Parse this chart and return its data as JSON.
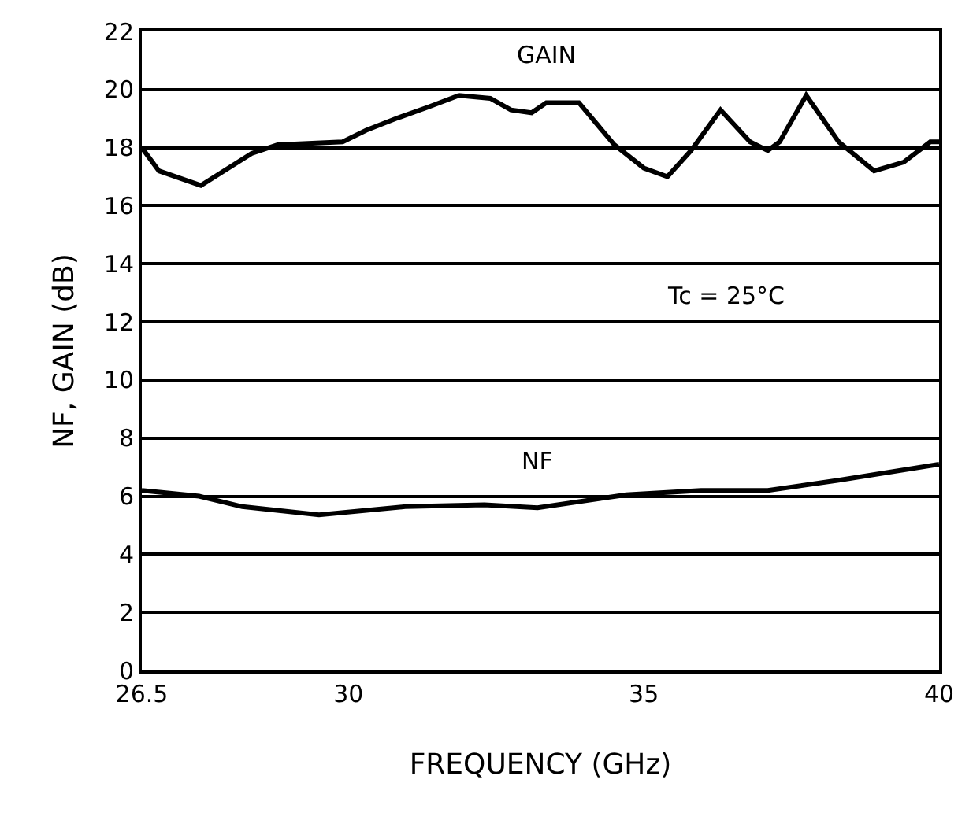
{
  "chart_data": {
    "type": "line",
    "xlabel": "FREQUENCY (GHz)",
    "ylabel": "NF, GAIN (dB)",
    "xlim": [
      26.5,
      40
    ],
    "xticks": [
      26.5,
      30,
      35,
      40
    ],
    "ylim": [
      0,
      22
    ],
    "yticks": [
      0,
      2,
      4,
      6,
      8,
      10,
      12,
      14,
      16,
      18,
      20,
      22
    ],
    "grid": "y",
    "legend": false,
    "marker": "none",
    "line_style": "solid",
    "series": [
      {
        "name": "GAIN",
        "color": "#000000",
        "x": [
          26.5,
          26.79,
          27.5,
          28.36,
          28.8,
          29.9,
          30.3,
          30.8,
          31.35,
          31.87,
          32.4,
          32.75,
          33.1,
          33.35,
          33.9,
          34.5,
          35.0,
          35.4,
          35.8,
          36.3,
          36.8,
          37.1,
          37.3,
          37.75,
          38.3,
          38.9,
          39.4,
          39.85,
          40
        ],
        "values": [
          18.0,
          17.2,
          16.7,
          17.8,
          18.1,
          18.2,
          18.6,
          19.0,
          19.4,
          19.8,
          19.7,
          19.3,
          19.2,
          19.55,
          19.55,
          18.1,
          17.3,
          17.0,
          17.9,
          19.3,
          18.2,
          17.9,
          18.2,
          19.8,
          18.2,
          17.2,
          17.5,
          18.2,
          18.2
        ]
      },
      {
        "name": "NF",
        "color": "#000000",
        "x": [
          26.5,
          27.47,
          28.2,
          29.5,
          30.96,
          32.3,
          33.2,
          34.7,
          35.97,
          37.1,
          38.3,
          40
        ],
        "values": [
          6.2,
          6.0,
          5.64,
          5.36,
          5.64,
          5.7,
          5.6,
          6.05,
          6.2,
          6.2,
          6.55,
          7.1
        ]
      }
    ],
    "annotations": [
      "Tc = 25°C"
    ]
  }
}
